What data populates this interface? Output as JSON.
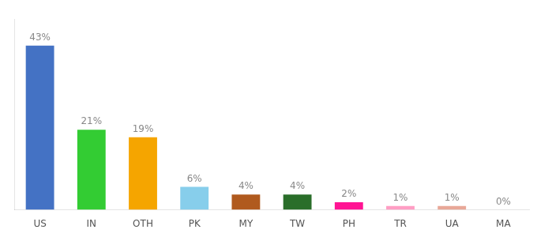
{
  "chart_data": {
    "type": "bar",
    "categories": [
      "US",
      "IN",
      "OTH",
      "PK",
      "MY",
      "TW",
      "PH",
      "TR",
      "UA",
      "MA"
    ],
    "values": [
      43,
      21,
      19,
      6,
      4,
      4,
      2,
      1,
      1,
      0
    ],
    "value_labels": [
      "43%",
      "21%",
      "19%",
      "6%",
      "4%",
      "4%",
      "2%",
      "1%",
      "1%",
      "0%"
    ],
    "colors": [
      "#4472c4",
      "#33cc33",
      "#f5a500",
      "#87ceeb",
      "#b05a1e",
      "#2a6e2a",
      "#ff1493",
      "#ff9ec4",
      "#e8a898",
      "#d3d3d3"
    ],
    "ylim": [
      0,
      50
    ],
    "data_labels": true,
    "tick_labels": "x",
    "grid": false
  }
}
